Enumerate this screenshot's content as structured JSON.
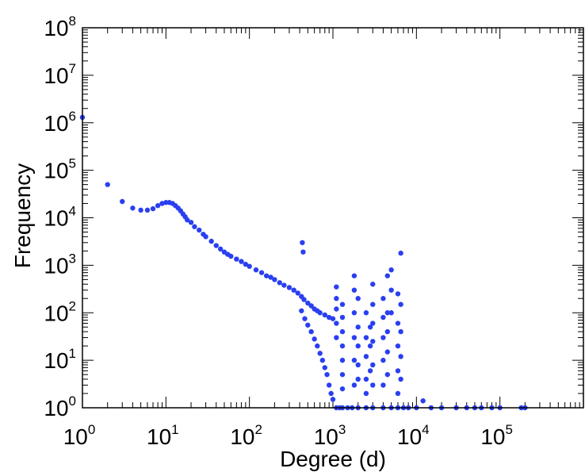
{
  "chart_data": {
    "type": "scatter",
    "xlabel": "Degree (d)",
    "ylabel": "Frequency",
    "x_scale": "log",
    "y_scale": "log",
    "xlim": [
      1,
      1000000
    ],
    "ylim": [
      1,
      100000000
    ],
    "x_ticks": [
      {
        "base": "10",
        "exp": "0",
        "value": 1
      },
      {
        "base": "10",
        "exp": "1",
        "value": 10
      },
      {
        "base": "10",
        "exp": "2",
        "value": 100
      },
      {
        "base": "10",
        "exp": "3",
        "value": 1000
      },
      {
        "base": "10",
        "exp": "4",
        "value": 10000
      },
      {
        "base": "10",
        "exp": "5",
        "value": 100000
      }
    ],
    "y_ticks": [
      {
        "base": "10",
        "exp": "0",
        "value": 1
      },
      {
        "base": "10",
        "exp": "1",
        "value": 10
      },
      {
        "base": "10",
        "exp": "2",
        "value": 100
      },
      {
        "base": "10",
        "exp": "3",
        "value": 1000
      },
      {
        "base": "10",
        "exp": "4",
        "value": 10000
      },
      {
        "base": "10",
        "exp": "5",
        "value": 100000
      },
      {
        "base": "10",
        "exp": "6",
        "value": 1000000
      },
      {
        "base": "10",
        "exp": "7",
        "value": 10000000
      },
      {
        "base": "10",
        "exp": "8",
        "value": 100000000
      }
    ],
    "grid": false,
    "legend": "none",
    "marker_color": "#2a3ff0",
    "points": [
      [
        1,
        1300000
      ],
      [
        2,
        50000
      ],
      [
        3,
        22000
      ],
      [
        4,
        16000
      ],
      [
        5,
        14500
      ],
      [
        6,
        14500
      ],
      [
        7,
        15500
      ],
      [
        8,
        18000
      ],
      [
        9,
        20000
      ],
      [
        10,
        21000
      ],
      [
        11,
        21000
      ],
      [
        12,
        20000
      ],
      [
        13,
        18000
      ],
      [
        14,
        16000
      ],
      [
        15,
        14000
      ],
      [
        16,
        12000
      ],
      [
        17,
        10500
      ],
      [
        18,
        9000
      ],
      [
        20,
        8000
      ],
      [
        22,
        6500
      ],
      [
        25,
        5500
      ],
      [
        28,
        4500
      ],
      [
        30,
        4000
      ],
      [
        35,
        3200
      ],
      [
        40,
        2600
      ],
      [
        45,
        2200
      ],
      [
        50,
        1900
      ],
      [
        55,
        1700
      ],
      [
        60,
        1550
      ],
      [
        70,
        1350
      ],
      [
        80,
        1200
      ],
      [
        90,
        1050
      ],
      [
        100,
        950
      ],
      [
        120,
        800
      ],
      [
        140,
        700
      ],
      [
        160,
        600
      ],
      [
        180,
        560
      ],
      [
        200,
        500
      ],
      [
        230,
        430
      ],
      [
        260,
        380
      ],
      [
        300,
        340
      ],
      [
        340,
        300
      ],
      [
        380,
        260
      ],
      [
        420,
        220
      ],
      [
        450,
        190
      ],
      [
        500,
        160
      ],
      [
        550,
        140
      ],
      [
        600,
        120
      ],
      [
        650,
        110
      ],
      [
        700,
        100
      ],
      [
        800,
        90
      ],
      [
        900,
        80
      ],
      [
        1000,
        75
      ],
      [
        430,
        3000
      ],
      [
        440,
        1900
      ],
      [
        420,
        110
      ],
      [
        460,
        75
      ],
      [
        500,
        55
      ],
      [
        550,
        40
      ],
      [
        600,
        28
      ],
      [
        650,
        20
      ],
      [
        700,
        14
      ],
      [
        750,
        10
      ],
      [
        800,
        7
      ],
      [
        850,
        5
      ],
      [
        900,
        3
      ],
      [
        950,
        2
      ],
      [
        1000,
        1.5
      ],
      [
        1100,
        1
      ],
      [
        1200,
        1
      ],
      [
        1300,
        1
      ],
      [
        1500,
        1
      ],
      [
        1700,
        1
      ],
      [
        2000,
        1
      ],
      [
        2500,
        1
      ],
      [
        3000,
        1
      ],
      [
        4000,
        1
      ],
      [
        5000,
        1
      ],
      [
        6000,
        1
      ],
      [
        7000,
        1
      ],
      [
        8000,
        1
      ],
      [
        10000,
        1
      ],
      [
        15000,
        1
      ],
      [
        20000,
        1
      ],
      [
        30000,
        1
      ],
      [
        40000,
        1
      ],
      [
        50000,
        1
      ],
      [
        60000,
        1
      ],
      [
        80000,
        1
      ],
      [
        100000,
        1
      ],
      [
        180000,
        1
      ],
      [
        200000,
        1
      ],
      [
        1100,
        350
      ],
      [
        1100,
        200
      ],
      [
        1100,
        120
      ],
      [
        1100,
        60
      ],
      [
        1100,
        30
      ],
      [
        1300,
        150
      ],
      [
        1300,
        80
      ],
      [
        1300,
        40
      ],
      [
        1300,
        20
      ],
      [
        1300,
        10
      ],
      [
        1300,
        5
      ],
      [
        1300,
        2.5
      ],
      [
        1800,
        600
      ],
      [
        1800,
        300
      ],
      [
        1800,
        100
      ],
      [
        1800,
        30
      ],
      [
        1800,
        10
      ],
      [
        1800,
        3
      ],
      [
        2000,
        200
      ],
      [
        2000,
        50
      ],
      [
        2000,
        20
      ],
      [
        2000,
        8
      ],
      [
        2000,
        4
      ],
      [
        2500,
        100
      ],
      [
        2500,
        30
      ],
      [
        2500,
        12
      ],
      [
        2500,
        4
      ],
      [
        2500,
        2
      ],
      [
        2800,
        50
      ],
      [
        2800,
        20
      ],
      [
        2800,
        6
      ],
      [
        3000,
        400
      ],
      [
        3000,
        150
      ],
      [
        3000,
        60
      ],
      [
        3000,
        25
      ],
      [
        3000,
        8
      ],
      [
        3000,
        3
      ],
      [
        4000,
        200
      ],
      [
        4000,
        80
      ],
      [
        4000,
        30
      ],
      [
        4000,
        10
      ],
      [
        4000,
        3
      ],
      [
        4500,
        600
      ],
      [
        4500,
        100
      ],
      [
        4500,
        40
      ],
      [
        4500,
        15
      ],
      [
        4500,
        5
      ],
      [
        5000,
        800
      ],
      [
        5000,
        300
      ],
      [
        5000,
        100
      ],
      [
        6000,
        250
      ],
      [
        6000,
        60
      ],
      [
        6000,
        20
      ],
      [
        6000,
        6
      ],
      [
        6000,
        2
      ],
      [
        6500,
        1800
      ],
      [
        6500,
        150
      ],
      [
        6500,
        40
      ],
      [
        6500,
        12
      ],
      [
        6500,
        4
      ],
      [
        12000,
        1.4
      ]
    ]
  }
}
